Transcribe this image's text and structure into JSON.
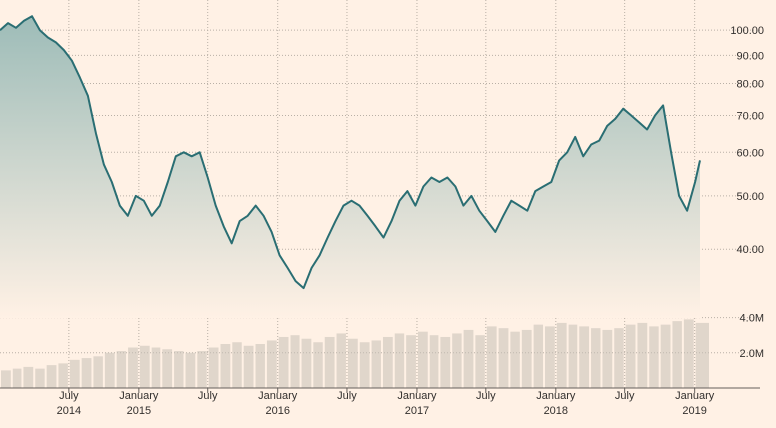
{
  "chart_data": [
    {
      "type": "area",
      "title": "",
      "xlabel": "",
      "ylabel": "",
      "y_scale": "log",
      "ylim": [
        30,
        107
      ],
      "y_ticks": [
        "100.00",
        "90.00",
        "80.00",
        "70.00",
        "60.00",
        "50.00",
        "40.00"
      ],
      "y_tick_values": [
        100,
        90,
        80,
        70,
        60,
        50,
        40
      ],
      "x_range": [
        "2014-01-01",
        "2019-01-15"
      ],
      "x_ticks": [
        {
          "date": "2014-07-01",
          "label": "July",
          "year": "2014"
        },
        {
          "date": "2015-01-01",
          "label": "January",
          "year": "2015"
        },
        {
          "date": "2015-07-01",
          "label": "July",
          "year": ""
        },
        {
          "date": "2016-01-01",
          "label": "January",
          "year": "2016"
        },
        {
          "date": "2016-07-01",
          "label": "July",
          "year": ""
        },
        {
          "date": "2017-01-01",
          "label": "January",
          "year": "2017"
        },
        {
          "date": "2017-07-01",
          "label": "July",
          "year": ""
        },
        {
          "date": "2018-01-01",
          "label": "January",
          "year": "2018"
        },
        {
          "date": "2018-07-01",
          "label": "July",
          "year": ""
        },
        {
          "date": "2019-01-01",
          "label": "January",
          "year": "2019"
        }
      ],
      "grid": true,
      "line_color": "#2a6e73",
      "fill_color_top": "#9dbcb8",
      "fill_color_bottom": "#fff1e5",
      "series": [
        {
          "x": [
            "2014-01-01",
            "2014-01-22",
            "2014-02-12",
            "2014-03-05",
            "2014-03-26",
            "2014-04-16",
            "2014-05-07",
            "2014-05-28",
            "2014-06-18",
            "2014-07-09",
            "2014-07-30",
            "2014-08-20",
            "2014-09-10",
            "2014-10-01",
            "2014-10-22",
            "2014-11-12",
            "2014-12-03",
            "2014-12-24",
            "2015-01-14",
            "2015-02-04",
            "2015-02-25",
            "2015-03-18",
            "2015-04-08",
            "2015-04-29",
            "2015-05-20",
            "2015-06-10",
            "2015-07-01",
            "2015-07-22",
            "2015-08-12",
            "2015-09-02",
            "2015-09-23",
            "2015-10-14",
            "2015-11-04",
            "2015-11-25",
            "2015-12-16",
            "2016-01-06",
            "2016-01-27",
            "2016-02-17",
            "2016-03-09",
            "2016-03-30",
            "2016-04-20",
            "2016-05-11",
            "2016-06-01",
            "2016-06-22",
            "2016-07-13",
            "2016-08-03",
            "2016-08-24",
            "2016-09-14",
            "2016-10-05",
            "2016-10-26",
            "2016-11-16",
            "2016-12-07",
            "2016-12-28",
            "2017-01-18",
            "2017-02-08",
            "2017-03-01",
            "2017-03-22",
            "2017-04-12",
            "2017-05-03",
            "2017-05-24",
            "2017-06-14",
            "2017-07-05",
            "2017-07-26",
            "2017-08-16",
            "2017-09-06",
            "2017-09-27",
            "2017-10-18",
            "2017-11-08",
            "2017-11-29",
            "2017-12-20",
            "2018-01-10",
            "2018-01-31",
            "2018-02-21",
            "2018-03-14",
            "2018-04-04",
            "2018-04-25",
            "2018-05-16",
            "2018-06-06",
            "2018-06-27",
            "2018-07-18",
            "2018-08-08",
            "2018-08-29",
            "2018-09-19",
            "2018-10-10",
            "2018-10-31",
            "2018-11-21",
            "2018-12-12",
            "2019-01-02",
            "2019-01-15"
          ],
          "values": [
            100,
            103,
            101,
            104,
            106,
            100,
            97,
            95,
            92,
            88,
            82,
            76,
            65,
            57,
            53,
            48,
            46,
            50,
            49,
            46,
            48,
            53,
            59,
            60,
            59,
            60,
            54,
            48,
            44,
            41,
            45,
            46,
            48,
            46,
            43,
            39,
            37,
            35,
            34,
            37,
            39,
            42,
            45,
            48,
            49,
            48,
            46,
            44,
            42,
            45,
            49,
            51,
            48,
            52,
            54,
            53,
            54,
            52,
            48,
            50,
            47,
            45,
            43,
            46,
            49,
            48,
            47,
            51,
            52,
            53,
            58,
            60,
            64,
            59,
            62,
            63,
            67,
            69,
            72,
            70,
            68,
            66,
            70,
            73,
            60,
            50,
            47,
            53,
            58
          ]
        }
      ]
    },
    {
      "type": "bar",
      "title": "",
      "y_ticks": [
        "4.0M",
        "2.0M"
      ],
      "y_tick_values": [
        4000000,
        2000000
      ],
      "ylim": [
        0,
        5000000
      ],
      "bar_color": "#c6bfb6",
      "series": [
        {
          "name": "",
          "x": [
            "2014-01",
            "2014-02",
            "2014-03",
            "2014-04",
            "2014-05",
            "2014-06",
            "2014-07",
            "2014-08",
            "2014-09",
            "2014-10",
            "2014-11",
            "2014-12",
            "2015-01",
            "2015-02",
            "2015-03",
            "2015-04",
            "2015-05",
            "2015-06",
            "2015-07",
            "2015-08",
            "2015-09",
            "2015-10",
            "2015-11",
            "2015-12",
            "2016-01",
            "2016-02",
            "2016-03",
            "2016-04",
            "2016-05",
            "2016-06",
            "2016-07",
            "2016-08",
            "2016-09",
            "2016-10",
            "2016-11",
            "2016-12",
            "2017-01",
            "2017-02",
            "2017-03",
            "2017-04",
            "2017-05",
            "2017-06",
            "2017-07",
            "2017-08",
            "2017-09",
            "2017-10",
            "2017-11",
            "2017-12",
            "2018-01",
            "2018-02",
            "2018-03",
            "2018-04",
            "2018-05",
            "2018-06",
            "2018-07",
            "2018-08",
            "2018-09",
            "2018-10",
            "2018-11",
            "2018-12",
            "2019-01"
          ],
          "values": [
            1000000,
            1100000,
            1200000,
            1100000,
            1300000,
            1400000,
            1600000,
            1700000,
            1800000,
            2000000,
            2100000,
            2300000,
            2400000,
            2300000,
            2200000,
            2100000,
            2000000,
            2100000,
            2300000,
            2500000,
            2600000,
            2400000,
            2500000,
            2700000,
            2900000,
            3000000,
            2800000,
            2600000,
            2900000,
            3100000,
            2800000,
            2600000,
            2700000,
            2900000,
            3100000,
            3000000,
            3200000,
            3000000,
            2900000,
            3100000,
            3300000,
            3000000,
            3500000,
            3400000,
            3200000,
            3300000,
            3600000,
            3500000,
            3700000,
            3600000,
            3500000,
            3400000,
            3300000,
            3400000,
            3600000,
            3700000,
            3500000,
            3600000,
            3800000,
            3900000,
            3700000
          ]
        }
      ]
    }
  ]
}
